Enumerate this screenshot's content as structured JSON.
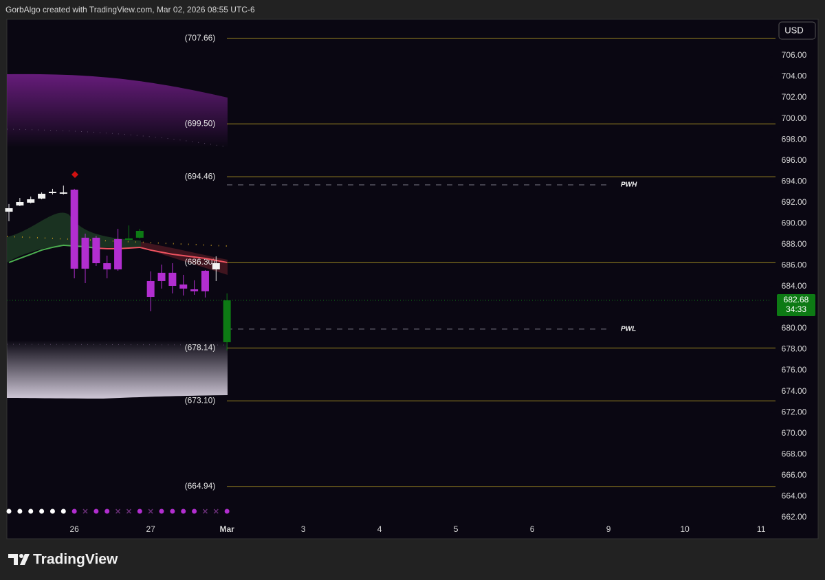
{
  "header": "GorbAlgo created with TradingView.com, Mar 02, 2026 08:55 UTC-6",
  "brand": "TradingView",
  "chart_data": {
    "type": "candlestick",
    "currency": "USD",
    "open": [
      691.13,
      691.72,
      691.99,
      692.38,
      692.9,
      692.84,
      693.23,
      688.65,
      688.65,
      686.22,
      688.51,
      688.45,
      688.65,
      684.52,
      685.31,
      685.31,
      684.19,
      683.73,
      685.5,
      685.63,
      678.69
    ],
    "high": [
      691.86,
      692.44,
      692.57,
      692.97,
      693.3,
      693.62,
      693.3,
      689.04,
      688.84,
      686.94,
      689.5,
      689.82,
      689.5,
      685.44,
      686.09,
      686.22,
      685.11,
      684.59,
      685.57,
      686.88,
      683.34
    ],
    "low": [
      690.22,
      691.66,
      691.92,
      692.31,
      692.77,
      692.77,
      684.78,
      684.32,
      685.96,
      684.78,
      685.5,
      688.38,
      688.58,
      681.64,
      683.8,
      683.34,
      683.14,
      683.21,
      682.95,
      684.52,
      677.91
    ],
    "close": [
      691.46,
      692.05,
      692.31,
      692.84,
      693.03,
      692.97,
      685.7,
      685.7,
      686.22,
      685.63,
      685.63,
      688.58,
      689.3,
      683.01,
      684.52,
      684.06,
      683.8,
      683.54,
      683.54,
      686.22,
      682.68
    ],
    "colors": [
      "#f2f2f2",
      "#f2f2f2",
      "#f2f2f2",
      "#f2f2f2",
      "#f2f2f2",
      "#f2f2f2",
      "#b22ed0",
      "#b22ed0",
      "#b22ed0",
      "#b22ed0",
      "#b22ed0",
      "#0d7a14",
      "#0d7a14",
      "#b22ed0",
      "#b22ed0",
      "#b22ed0",
      "#b22ed0",
      "#b22ed0",
      "#b22ed0",
      "#f2f2f2",
      "#0d7a14"
    ],
    "overlays": [
      {
        "color": "#4caf50",
        "values": [
          686.29,
          686.68,
          687.07,
          687.47,
          687.73,
          687.93,
          687.86,
          687.79,
          687.66,
          null,
          null,
          null,
          null,
          null,
          null,
          null,
          null,
          null,
          null,
          null,
          null
        ]
      },
      {
        "color": "#ef5360",
        "values": [
          null,
          null,
          null,
          null,
          null,
          null,
          null,
          null,
          687.66,
          687.6,
          687.6,
          687.66,
          687.73,
          687.47,
          687.27,
          687.07,
          686.94,
          686.81,
          686.68,
          686.49,
          686.29
        ]
      }
    ],
    "xlim": [
      -0.19,
      69.81
    ],
    "xticks": [
      {
        "value": 6,
        "label": "26"
      },
      {
        "value": 13,
        "label": "27"
      },
      {
        "value": 20,
        "label": "Mar"
      },
      {
        "value": 27,
        "label": "3"
      },
      {
        "value": 34,
        "label": "4"
      },
      {
        "value": 41,
        "label": "5"
      },
      {
        "value": 48,
        "label": "6"
      },
      {
        "value": 55,
        "label": "9"
      },
      {
        "value": 62,
        "label": "10"
      },
      {
        "value": 69,
        "label": "11"
      }
    ],
    "ylim": [
      661.53,
      709.47
    ],
    "yticks": [
      {
        "value": 662,
        "label": "662.00"
      },
      {
        "value": 664,
        "label": "664.00"
      },
      {
        "value": 666,
        "label": "666.00"
      },
      {
        "value": 668,
        "label": "668.00"
      },
      {
        "value": 670,
        "label": "670.00"
      },
      {
        "value": 672,
        "label": "672.00"
      },
      {
        "value": 674,
        "label": "674.00"
      },
      {
        "value": 676,
        "label": "676.00"
      },
      {
        "value": 678,
        "label": "678.00"
      },
      {
        "value": 680,
        "label": "680.00"
      },
      {
        "value": 682,
        "label": "682.00"
      },
      {
        "value": 684,
        "label": "684.00"
      },
      {
        "value": 686,
        "label": "686.00"
      },
      {
        "value": 688,
        "label": "688.00"
      },
      {
        "value": 690,
        "label": "690.00"
      },
      {
        "value": 692,
        "label": "692.00"
      },
      {
        "value": 694,
        "label": "694.00"
      },
      {
        "value": 696,
        "label": "696.00"
      },
      {
        "value": 698,
        "label": "698.00"
      },
      {
        "value": 700,
        "label": "700.00"
      },
      {
        "value": 702,
        "label": "702.00"
      },
      {
        "value": 704,
        "label": "704.00"
      },
      {
        "value": 706,
        "label": "706.00"
      }
    ],
    "levels_color": "#a08a22",
    "levels": [
      {
        "value": 707.66,
        "label": "(707.66)"
      },
      {
        "value": 699.5,
        "label": "(699.50)"
      },
      {
        "value": 694.46,
        "label": "(694.46)"
      },
      {
        "value": 686.3,
        "label": "(686.30)"
      },
      {
        "value": 678.14,
        "label": "(678.14)"
      },
      {
        "value": 673.1,
        "label": "(673.10)"
      },
      {
        "value": 664.94,
        "label": "(664.94)"
      }
    ],
    "prev_week": [
      {
        "name": "PWH",
        "value": 693.69
      },
      {
        "name": "PWL",
        "value": 679.94
      }
    ],
    "last_price": {
      "value": 682.68,
      "countdown": "34:33",
      "color": "#0d7a14"
    }
  }
}
